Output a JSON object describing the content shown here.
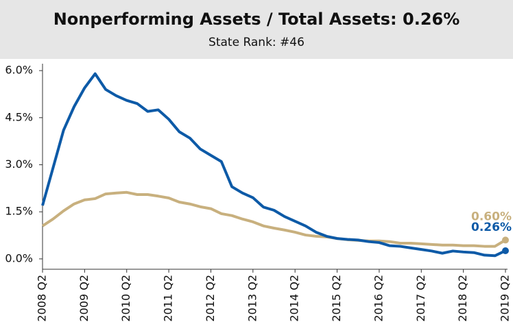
{
  "chart_data": {
    "type": "line",
    "title": "Nonperforming Assets / Total Assets: 0.26%",
    "subtitle": "State Rank: #46",
    "categories": [
      "2008 Q2",
      null,
      null,
      null,
      "2009 Q2",
      null,
      null,
      null,
      "2010 Q2",
      null,
      null,
      null,
      "2011 Q2",
      null,
      null,
      null,
      "2012 Q2",
      null,
      null,
      null,
      "2013 Q2",
      null,
      null,
      null,
      "2014 Q2",
      null,
      null,
      null,
      "2015 Q2",
      null,
      null,
      null,
      "2016 Q2",
      null,
      null,
      null,
      "2017 Q2",
      null,
      null,
      null,
      "2018 Q2",
      null,
      null,
      null,
      "2019 Q2"
    ],
    "series": [
      {
        "color": "#c8b07e",
        "values": [
          1.05,
          1.27,
          1.53,
          1.75,
          1.88,
          1.92,
          2.07,
          2.1,
          2.12,
          2.05,
          2.05,
          2.0,
          1.94,
          1.81,
          1.75,
          1.66,
          1.6,
          1.44,
          1.38,
          1.27,
          1.18,
          1.05,
          0.98,
          0.92,
          0.85,
          0.76,
          0.72,
          0.7,
          0.65,
          0.61,
          0.59,
          0.57,
          0.57,
          0.55,
          0.5,
          0.5,
          0.48,
          0.46,
          0.44,
          0.44,
          0.42,
          0.42,
          0.4,
          0.4,
          0.6
        ],
        "value_labels": [
          null,
          null,
          null,
          null,
          null,
          null,
          null,
          null,
          null,
          null,
          null,
          null,
          null,
          null,
          null,
          null,
          null,
          null,
          null,
          null,
          null,
          null,
          null,
          null,
          null,
          null,
          null,
          null,
          null,
          null,
          null,
          null,
          null,
          null,
          null,
          null,
          null,
          null,
          null,
          null,
          null,
          null,
          null,
          null,
          "0.60%"
        ]
      },
      {
        "color": "#0d5aa7",
        "values": [
          1.7,
          2.9,
          4.1,
          4.85,
          5.45,
          5.9,
          5.4,
          5.2,
          5.05,
          4.95,
          4.7,
          4.75,
          4.45,
          4.05,
          3.85,
          3.5,
          3.3,
          3.1,
          2.3,
          2.1,
          1.95,
          1.65,
          1.55,
          1.35,
          1.2,
          1.05,
          0.85,
          0.72,
          0.65,
          0.62,
          0.6,
          0.55,
          0.52,
          0.42,
          0.4,
          0.35,
          0.3,
          0.25,
          0.18,
          0.25,
          0.22,
          0.2,
          0.12,
          0.1,
          0.26
        ],
        "value_labels": [
          null,
          null,
          null,
          null,
          null,
          null,
          null,
          null,
          null,
          null,
          null,
          null,
          null,
          null,
          null,
          null,
          null,
          null,
          null,
          null,
          null,
          null,
          null,
          null,
          null,
          null,
          null,
          null,
          null,
          null,
          null,
          null,
          null,
          null,
          null,
          null,
          null,
          null,
          null,
          null,
          null,
          null,
          null,
          null,
          "0.26%"
        ]
      }
    ],
    "ylim": [
      -0.33,
      6.22
    ],
    "yticks": [
      {
        "value": 0,
        "label": "0.0%"
      },
      {
        "value": 1.5,
        "label": "1.5%"
      },
      {
        "value": 3,
        "label": "3.0%"
      },
      {
        "value": 4.5,
        "label": "4.5%"
      },
      {
        "value": 6,
        "label": "6.0%"
      }
    ],
    "grid": false
  }
}
